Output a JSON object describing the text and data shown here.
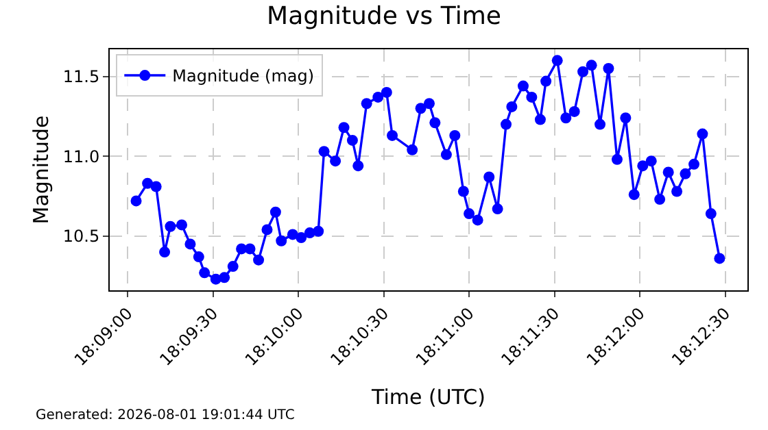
{
  "chart_data": {
    "type": "line",
    "title": "Magnitude vs Time",
    "xlabel": "Time (UTC)",
    "ylabel": "Magnitude",
    "x": [
      18.15083,
      18.15194,
      18.15278,
      18.15361,
      18.15417,
      18.15528,
      18.15611,
      18.15694,
      18.1575,
      18.15861,
      18.15944,
      18.16028,
      18.16111,
      18.16194,
      18.16278,
      18.16361,
      18.16444,
      18.165,
      18.16611,
      18.16694,
      18.16778,
      18.16861,
      18.16917,
      18.17028,
      18.17111,
      18.17194,
      18.1725,
      18.17333,
      18.17444,
      18.17528,
      18.17583,
      18.17778,
      18.17861,
      18.17944,
      18.18,
      18.18111,
      18.18194,
      18.18278,
      18.18333,
      18.18417,
      18.18528,
      18.18611,
      18.18694,
      18.1875,
      18.18861,
      18.18944,
      18.19028,
      18.19083,
      18.19194,
      18.19278,
      18.19361,
      18.19444,
      18.19528,
      18.19611,
      18.19694,
      18.19778,
      18.19861,
      18.19944,
      18.20028,
      18.20111,
      18.20194,
      18.20278,
      18.20361,
      18.20444,
      18.20528,
      18.20611,
      18.20694,
      18.20778
    ],
    "series": [
      {
        "name": "Magnitude (mag)",
        "color": "#0000ff",
        "values": [
          10.72,
          10.83,
          10.81,
          10.4,
          10.56,
          10.57,
          10.45,
          10.37,
          10.27,
          10.23,
          10.24,
          10.31,
          10.42,
          10.42,
          10.35,
          10.54,
          10.65,
          10.47,
          10.51,
          10.49,
          10.52,
          10.53,
          11.03,
          10.97,
          11.18,
          11.1,
          10.94,
          11.33,
          11.37,
          11.4,
          11.13,
          11.04,
          11.3,
          11.33,
          11.21,
          11.01,
          11.13,
          10.78,
          10.64,
          10.6,
          10.87,
          10.67,
          11.2,
          11.31,
          11.44,
          11.37,
          11.23,
          11.47,
          11.6,
          11.24,
          11.28,
          11.53,
          11.57,
          11.2,
          11.55,
          10.98,
          11.24,
          10.76,
          10.94,
          10.97,
          10.73,
          10.9,
          10.78,
          10.89,
          10.95,
          11.14,
          10.64,
          10.36
        ]
      }
    ],
    "xlim": [
      18.14825,
      18.2105
    ],
    "xticks": [
      {
        "value": 18.15,
        "label": "18:09:00"
      },
      {
        "value": 18.158333,
        "label": "18:09:30"
      },
      {
        "value": 18.166667,
        "label": "18:10:00"
      },
      {
        "value": 18.175,
        "label": "18:10:30"
      },
      {
        "value": 18.183333,
        "label": "18:11:00"
      },
      {
        "value": 18.191667,
        "label": "18:11:30"
      },
      {
        "value": 18.2,
        "label": "18:12:00"
      },
      {
        "value": 18.208333,
        "label": "18:12:30"
      }
    ],
    "ylim": [
      10.16,
      11.67
    ],
    "yticks": [
      10.5,
      {
        "value": 11,
        "label": "11.0"
      },
      11.5
    ],
    "grid": true,
    "legend": "top left",
    "marker": "circle",
    "line_style": "solid",
    "annotations": [
      "Generated: 2026-08-01 19:01:44 UTC"
    ]
  }
}
